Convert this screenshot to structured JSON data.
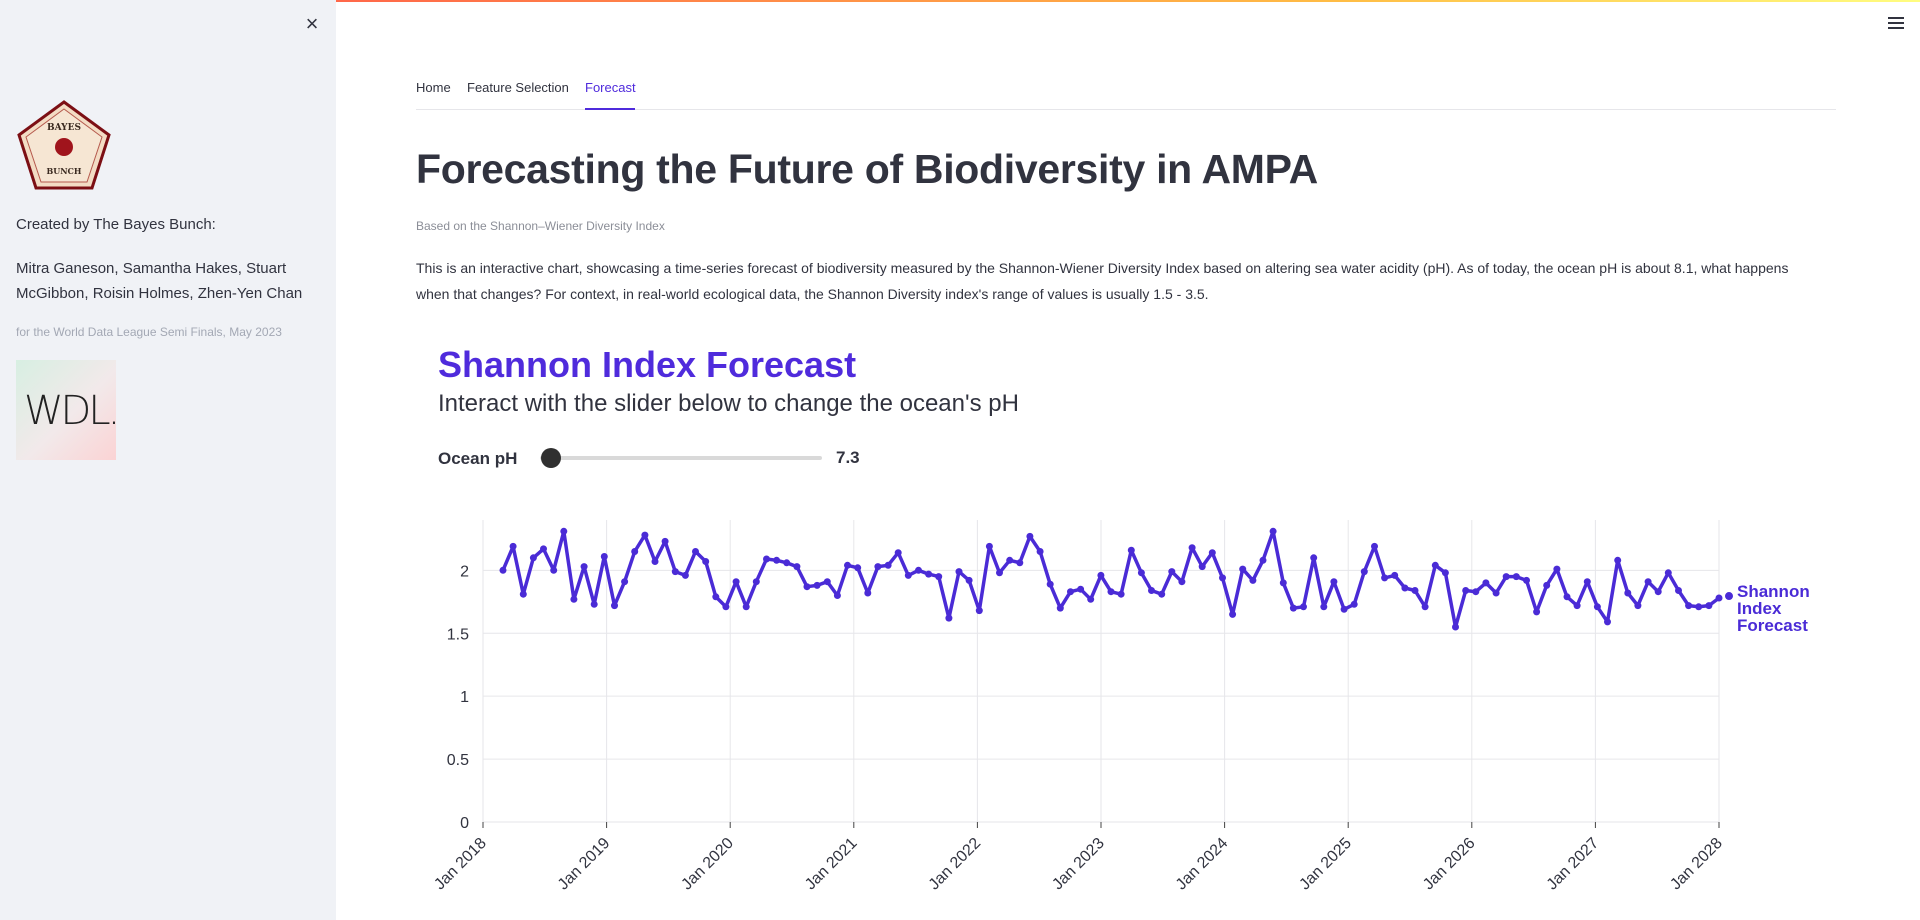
{
  "sidebar": {
    "close_label": "×",
    "logo_top_text": "BAYES",
    "logo_bottom_text": "BUNCH",
    "created_by": "Created by The Bayes Bunch:",
    "names": "Mitra Ganeson, Samantha Hakes, Stuart McGibbon, Roisin Holmes, Zhen-Yen Chan",
    "caption": "for the World Data League Semi Finals, May 2023",
    "wdl_logo_text": "WDL."
  },
  "tabs": [
    {
      "label": "Home",
      "active": false
    },
    {
      "label": "Feature Selection",
      "active": false
    },
    {
      "label": "Forecast",
      "active": true
    }
  ],
  "page": {
    "title": "Forecasting the Future of Biodiversity in AMPA",
    "subtitle": "Based on the Shannon–Wiener Diversity Index",
    "description": "This is an interactive chart, showcasing a time-series forecast of biodiversity measured by the Shannon-Wiener Diversity Index based on altering sea water acidity (pH). As of today, the ocean pH is about 8.1, what happens when that changes? For context, in real-world ecological data, the Shannon Diversity index's range of values is usually 1.5 - 3.5."
  },
  "chart_header": {
    "title": "Shannon Index Forecast",
    "subtitle": "Interact with the slider below to change the ocean's pH"
  },
  "slider": {
    "label": "Ocean pH",
    "value": "7.3",
    "position_fraction": 0.04
  },
  "colors": {
    "accent": "#4f2bdc",
    "series": "#4a2bd6",
    "grid": "#e6e6ea",
    "text": "#31333f"
  },
  "chart_data": {
    "type": "line",
    "title": "",
    "xlabel": "",
    "ylabel": "",
    "x_start": "Jan 2018",
    "x_tick_labels": [
      "Jan 2018",
      "Jan 2019",
      "Jan 2020",
      "Jan 2021",
      "Jan 2022",
      "Jan 2023",
      "Jan 2024",
      "Jan 2025",
      "Jan 2026",
      "Jan 2027",
      "Jan 2028"
    ],
    "y_ticks": [
      "0",
      "0.5",
      "1",
      "1.5",
      "2"
    ],
    "ylim": [
      0,
      2.4
    ],
    "grid": true,
    "series": [
      {
        "name": "Shannon Index Forecast",
        "values": [
          2.0,
          2.19,
          1.81,
          2.1,
          2.17,
          2.0,
          2.31,
          1.77,
          2.03,
          1.73,
          2.11,
          1.72,
          1.91,
          2.15,
          2.28,
          2.07,
          2.23,
          1.99,
          1.96,
          2.15,
          2.07,
          1.79,
          1.71,
          1.91,
          1.71,
          1.91,
          2.09,
          2.08,
          2.06,
          2.03,
          1.87,
          1.88,
          1.91,
          1.8,
          2.04,
          2.02,
          1.82,
          2.03,
          2.04,
          2.14,
          1.96,
          2.0,
          1.97,
          1.95,
          1.62,
          1.99,
          1.92,
          1.68,
          2.19,
          1.98,
          2.08,
          2.06,
          2.27,
          2.15,
          1.89,
          1.7,
          1.83,
          1.85,
          1.77,
          1.96,
          1.83,
          1.81,
          2.16,
          1.98,
          1.84,
          1.81,
          1.99,
          1.91,
          2.18,
          2.03,
          2.14,
          1.94,
          1.65,
          2.01,
          1.92,
          2.08,
          2.31,
          1.9,
          1.7,
          1.71,
          2.1,
          1.71,
          1.91,
          1.69,
          1.73,
          1.99,
          2.19,
          1.94,
          1.96,
          1.86,
          1.84,
          1.71,
          2.04,
          1.98,
          1.55,
          1.84,
          1.83,
          1.9,
          1.82,
          1.95,
          1.95,
          1.92,
          1.67,
          1.88,
          2.01,
          1.79,
          1.72,
          1.91,
          1.71,
          1.59,
          2.08,
          1.82,
          1.72,
          1.91,
          1.83,
          1.98,
          1.84,
          1.72,
          1.71,
          1.72,
          1.78
        ]
      }
    ],
    "legend_label_lines": [
      "Shannon",
      "Index",
      "Forecast"
    ]
  }
}
